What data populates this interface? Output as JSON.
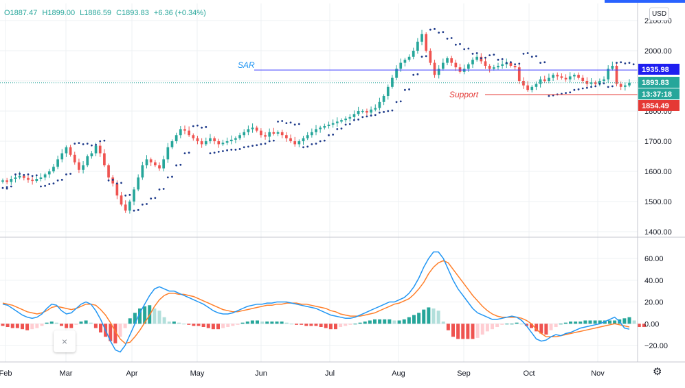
{
  "legend": {
    "open": "O1887.47",
    "high": "H1899.00",
    "low": "L1886.59",
    "close": "C1893.83",
    "change": "+6.36 (+0.34%)"
  },
  "currency_button": "USD",
  "close_icon": "×",
  "settings_icon": "⚙",
  "colors": {
    "up": "#26a69a",
    "down": "#ef5350",
    "sar": "#1e3a8a",
    "line_sar": "#3a3aff",
    "line_support": "#e53935",
    "macd": "#2196f3",
    "signal": "#ff7f2a",
    "hist_up_strong": "#26a69a",
    "hist_up_weak": "#b2dfdb",
    "hist_down_strong": "#ef5350",
    "hist_down_weak": "#ffcdd2",
    "grid": "#eef0f3"
  },
  "chart_data": [
    {
      "type": "candlestick",
      "title": "",
      "y_axis_ticks": [
        "1400.00",
        "1500.00",
        "1600.00",
        "1700.00",
        "1800.00",
        "1900.00",
        "2000.00",
        "2100.00"
      ],
      "ylim": [
        1378,
        2135
      ],
      "x_axis_ticks": [
        "Feb",
        "Mar",
        "Apr",
        "May",
        "Jun",
        "Jul",
        "Aug",
        "Sep",
        "Oct",
        "Nov"
      ],
      "price_labels": [
        {
          "name": "sar-level",
          "text": "1935.98",
          "value": 1935.98,
          "color": "#1e1ef0"
        },
        {
          "name": "last-price",
          "text": "1893.83",
          "value": 1893.83,
          "color": "#26a69a"
        },
        {
          "name": "countdown",
          "text": "13:37:18",
          "value": 1873.0,
          "color": "#26a69a"
        },
        {
          "name": "support-level",
          "text": "1854.49",
          "value": 1854.49,
          "color": "#e53935"
        }
      ],
      "annotations": [
        {
          "text": "SAR",
          "value": 1935.98,
          "color": "#2196f3"
        },
        {
          "text": "Support",
          "value": 1854.49,
          "color": "#e53935"
        }
      ],
      "closes": [
        1570,
        1565,
        1575,
        1580,
        1585,
        1578,
        1572,
        1568,
        1575,
        1580,
        1590,
        1600,
        1615,
        1640,
        1660,
        1680,
        1655,
        1630,
        1605,
        1620,
        1650,
        1660,
        1685,
        1660,
        1620,
        1580,
        1560,
        1520,
        1490,
        1470,
        1500,
        1540,
        1580,
        1620,
        1640,
        1630,
        1620,
        1610,
        1640,
        1680,
        1700,
        1720,
        1740,
        1735,
        1720,
        1710,
        1700,
        1690,
        1700,
        1710,
        1700,
        1690,
        1695,
        1700,
        1705,
        1710,
        1720,
        1730,
        1740,
        1745,
        1735,
        1720,
        1715,
        1730,
        1725,
        1730,
        1720,
        1710,
        1700,
        1690,
        1700,
        1710,
        1720,
        1730,
        1740,
        1745,
        1750,
        1755,
        1760,
        1765,
        1770,
        1775,
        1780,
        1790,
        1800,
        1800,
        1795,
        1805,
        1810,
        1830,
        1850,
        1880,
        1910,
        1940,
        1960,
        1970,
        1980,
        2000,
        2030,
        2055,
        2000,
        1960,
        1920,
        1940,
        1960,
        1975,
        1960,
        1945,
        1930,
        1940,
        1955,
        1970,
        1980,
        1965,
        1950,
        1940,
        1945,
        1950,
        1955,
        1960,
        1950,
        1945,
        1900,
        1885,
        1870,
        1880,
        1890,
        1905,
        1900,
        1910,
        1920,
        1915,
        1910,
        1905,
        1915,
        1920,
        1910,
        1900,
        1890,
        1895,
        1890,
        1900,
        1905,
        1940,
        1950,
        1890,
        1880,
        1885,
        1893.83
      ],
      "sar_points": [
        {
          "i": 0,
          "v": 1545
        },
        {
          "i": 1,
          "v": 1548
        },
        {
          "i": 3,
          "v": 1590
        },
        {
          "i": 5,
          "v": 1588
        },
        {
          "i": 7,
          "v": 1585
        },
        {
          "i": 9,
          "v": 1550
        },
        {
          "i": 11,
          "v": 1558
        },
        {
          "i": 13,
          "v": 1570
        },
        {
          "i": 15,
          "v": 1590
        },
        {
          "i": 17,
          "v": 1692
        },
        {
          "i": 19,
          "v": 1690
        },
        {
          "i": 21,
          "v": 1686
        },
        {
          "i": 23,
          "v": 1700
        },
        {
          "i": 25,
          "v": 1570
        },
        {
          "i": 27,
          "v": 1560
        },
        {
          "i": 29,
          "v": 1520
        },
        {
          "i": 31,
          "v": 1470
        },
        {
          "i": 33,
          "v": 1490
        },
        {
          "i": 35,
          "v": 1510
        },
        {
          "i": 37,
          "v": 1540
        },
        {
          "i": 39,
          "v": 1580
        },
        {
          "i": 41,
          "v": 1620
        },
        {
          "i": 43,
          "v": 1660
        },
        {
          "i": 45,
          "v": 1750
        },
        {
          "i": 47,
          "v": 1745
        },
        {
          "i": 49,
          "v": 1660
        },
        {
          "i": 51,
          "v": 1665
        },
        {
          "i": 53,
          "v": 1670
        },
        {
          "i": 55,
          "v": 1672
        },
        {
          "i": 57,
          "v": 1680
        },
        {
          "i": 59,
          "v": 1685
        },
        {
          "i": 61,
          "v": 1690
        },
        {
          "i": 63,
          "v": 1700
        },
        {
          "i": 65,
          "v": 1765
        },
        {
          "i": 67,
          "v": 1760
        },
        {
          "i": 69,
          "v": 1755
        },
        {
          "i": 71,
          "v": 1680
        },
        {
          "i": 73,
          "v": 1690
        },
        {
          "i": 75,
          "v": 1700
        },
        {
          "i": 77,
          "v": 1720
        },
        {
          "i": 79,
          "v": 1740
        },
        {
          "i": 81,
          "v": 1755
        },
        {
          "i": 83,
          "v": 1770
        },
        {
          "i": 85,
          "v": 1780
        },
        {
          "i": 87,
          "v": 1785
        },
        {
          "i": 89,
          "v": 1795
        },
        {
          "i": 91,
          "v": 1800
        },
        {
          "i": 93,
          "v": 1830
        },
        {
          "i": 95,
          "v": 1870
        },
        {
          "i": 97,
          "v": 1920
        },
        {
          "i": 99,
          "v": 1980
        },
        {
          "i": 101,
          "v": 2070
        },
        {
          "i": 103,
          "v": 2060
        },
        {
          "i": 105,
          "v": 2040
        },
        {
          "i": 107,
          "v": 2020
        },
        {
          "i": 109,
          "v": 2005
        },
        {
          "i": 111,
          "v": 1990
        },
        {
          "i": 113,
          "v": 1975
        },
        {
          "i": 115,
          "v": 1985
        },
        {
          "i": 117,
          "v": 1970
        },
        {
          "i": 119,
          "v": 1960
        },
        {
          "i": 121,
          "v": 1955
        },
        {
          "i": 123,
          "v": 1990
        },
        {
          "i": 125,
          "v": 1980
        },
        {
          "i": 127,
          "v": 1960
        },
        {
          "i": 129,
          "v": 1850
        },
        {
          "i": 131,
          "v": 1855
        },
        {
          "i": 133,
          "v": 1860
        },
        {
          "i": 135,
          "v": 1870
        },
        {
          "i": 137,
          "v": 1875
        },
        {
          "i": 139,
          "v": 1880
        },
        {
          "i": 141,
          "v": 1890
        },
        {
          "i": 143,
          "v": 1880
        },
        {
          "i": 145,
          "v": 1960
        },
        {
          "i": 147,
          "v": 1958
        },
        {
          "i": 149,
          "v": 1955
        }
      ]
    },
    {
      "type": "line",
      "title": "",
      "y_axis_ticks": [
        "−20.00",
        "0.00",
        "20.00",
        "40.00",
        "60.00"
      ],
      "ylim": [
        -32,
        72
      ],
      "series": [
        {
          "key": "macd",
          "values": [
            18,
            17,
            14,
            11,
            8,
            6,
            5,
            6,
            9,
            14,
            18,
            17,
            12,
            9,
            10,
            14,
            18,
            20,
            18,
            12,
            4,
            -6,
            -16,
            -24,
            -26,
            -20,
            -10,
            0,
            10,
            18,
            26,
            32,
            34,
            32,
            30,
            30,
            28,
            26,
            24,
            22,
            20,
            18,
            15,
            12,
            10,
            9,
            9,
            10,
            12,
            14,
            16,
            17,
            18,
            18,
            19,
            19,
            20,
            20,
            20,
            19,
            18,
            17,
            16,
            15,
            14,
            12,
            10,
            8,
            7,
            6,
            5,
            5,
            6,
            8,
            10,
            12,
            14,
            16,
            18,
            20,
            20,
            22,
            24,
            28,
            34,
            42,
            52,
            60,
            66,
            66,
            60,
            50,
            40,
            32,
            26,
            20,
            14,
            10,
            8,
            6,
            4,
            4,
            5,
            6,
            7,
            6,
            3,
            -2,
            -8,
            -14,
            -16,
            -15,
            -12,
            -10,
            -11,
            -9,
            -8,
            -6,
            -4,
            -3,
            -2,
            -1,
            0,
            2,
            4,
            6,
            2,
            -4,
            -5
          ]
        },
        {
          "key": "signal",
          "values": [
            19,
            18,
            17,
            15,
            13,
            11,
            10,
            9,
            10,
            12,
            15,
            16,
            15,
            14,
            13,
            14,
            16,
            18,
            18,
            17,
            13,
            8,
            1,
            -7,
            -14,
            -18,
            -17,
            -12,
            -6,
            1,
            8,
            16,
            22,
            26,
            28,
            28,
            27,
            27,
            26,
            25,
            23,
            21,
            19,
            17,
            15,
            13,
            12,
            11,
            11,
            12,
            13,
            14,
            15,
            16,
            17,
            17,
            18,
            18,
            19,
            19,
            19,
            18,
            18,
            17,
            16,
            15,
            14,
            12,
            11,
            9,
            8,
            7,
            7,
            7,
            8,
            9,
            10,
            12,
            14,
            16,
            18,
            19,
            21,
            23,
            27,
            32,
            38,
            46,
            52,
            56,
            58,
            56,
            50,
            44,
            38,
            32,
            26,
            21,
            16,
            12,
            9,
            7,
            6,
            6,
            6,
            6,
            5,
            3,
            0,
            -5,
            -9,
            -12,
            -12,
            -12,
            -11,
            -10,
            -9,
            -8,
            -7,
            -6,
            -5,
            -4,
            -3,
            -2,
            -1,
            0,
            -1,
            -2,
            -3
          ]
        },
        {
          "key": "histogram",
          "values": [
            -2,
            -3,
            -4,
            -4,
            -5,
            -6,
            -5,
            -4,
            -2,
            1,
            2,
            1,
            -2,
            -4,
            -4,
            -1,
            2,
            3,
            1,
            -4,
            -8,
            -12,
            -16,
            -18,
            -12,
            -4,
            5,
            10,
            14,
            16,
            17,
            14,
            12,
            6,
            2,
            2,
            1,
            0,
            -1,
            -2,
            -2,
            -3,
            -4,
            -5,
            -5,
            -4,
            -3,
            -2,
            -1,
            1,
            2,
            3,
            3,
            2,
            2,
            2,
            2,
            2,
            1,
            0,
            -1,
            -1,
            -2,
            -2,
            -2,
            -3,
            -4,
            -5,
            -5,
            -3,
            -2,
            -1,
            0,
            1,
            2,
            3,
            4,
            4,
            4,
            4,
            3,
            3,
            4,
            6,
            8,
            10,
            13,
            15,
            14,
            12,
            2,
            -6,
            -12,
            -14,
            -14,
            -14,
            -14,
            -13,
            -10,
            -7,
            -5,
            -3,
            -1,
            0,
            0,
            1,
            0,
            -2,
            -4,
            -7,
            -9,
            -10,
            -6,
            -3,
            0,
            1,
            2,
            2,
            2,
            3,
            3,
            3,
            3,
            3,
            3,
            3,
            4,
            5,
            6,
            3,
            -3,
            -3
          ]
        }
      ]
    }
  ]
}
